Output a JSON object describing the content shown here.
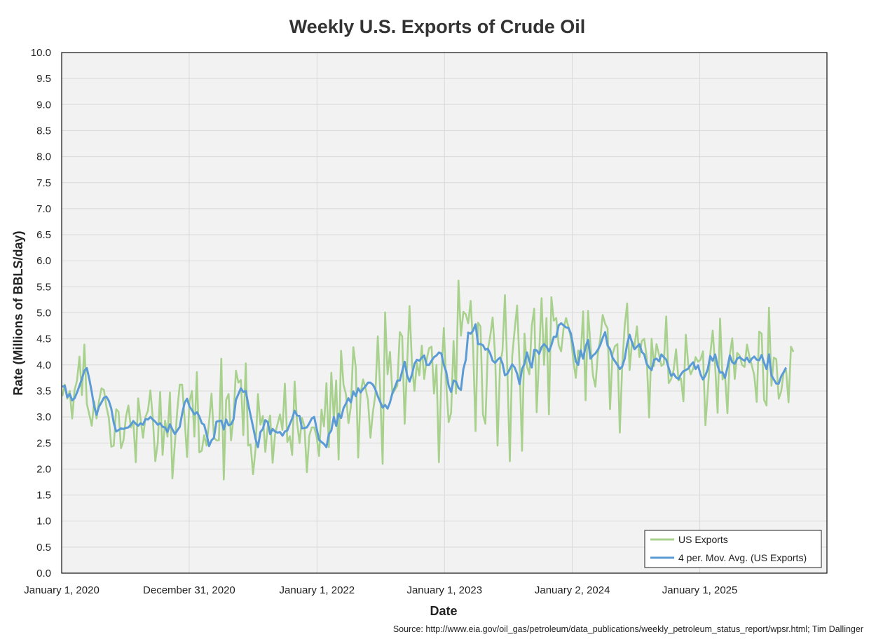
{
  "chart_data": {
    "type": "line",
    "title": "Weekly U.S. Exports of Crude Oil",
    "xlabel": "Date",
    "ylabel": "Rate (Millions of BBLS/day)",
    "ylim": [
      0,
      10
    ],
    "xlim": [
      "2020-01-01",
      "2025-12-31"
    ],
    "x_ticks": [
      "January 1, 2020",
      "December 31, 2020",
      "January 1, 2022",
      "January 1, 2023",
      "January 2, 2024",
      "January 1, 2025"
    ],
    "y_ticks": [
      "0.0",
      "0.5",
      "1.0",
      "1.5",
      "2.0",
      "2.5",
      "3.0",
      "3.5",
      "4.0",
      "4.5",
      "5.0",
      "5.5",
      "6.0",
      "6.5",
      "7.0",
      "7.5",
      "8.0",
      "8.5",
      "9.0",
      "9.5",
      "10.0"
    ],
    "grid": true,
    "legend_position": "bottom-right",
    "x_start": "2020-01-03",
    "x_interval": "weekly",
    "series": [
      {
        "name": "US Exports",
        "color": "#a9d18e",
        "values": [
          3.4,
          3.62,
          3.35,
          3.5,
          2.97,
          3.52,
          3.7,
          4.16,
          3.42,
          4.39,
          3.25,
          3.05,
          2.83,
          3.3,
          2.97,
          3.31,
          3.55,
          3.52,
          3.2,
          2.98,
          2.43,
          2.45,
          3.15,
          3.1,
          2.4,
          2.55,
          3.0,
          3.22,
          2.8,
          2.92,
          2.13,
          3.36,
          2.96,
          2.6,
          3.0,
          3.12,
          3.51,
          2.96,
          2.15,
          2.5,
          3.48,
          2.27,
          2.93,
          2.62,
          3.47,
          1.82,
          2.48,
          3.13,
          3.62,
          3.62,
          2.97,
          2.23,
          3.3,
          3.5,
          2.62,
          3.86,
          2.32,
          2.35,
          2.65,
          2.45,
          2.9,
          3.45,
          2.6,
          2.55,
          2.55,
          4.12,
          1.8,
          3.33,
          3.44,
          2.55,
          3.0,
          3.89,
          3.66,
          3.71,
          2.65,
          4.03,
          2.45,
          2.47,
          1.9,
          2.38,
          3.44,
          2.85,
          3.02,
          2.33,
          2.82,
          3.03,
          2.12,
          2.67,
          2.86,
          3.05,
          2.75,
          3.64,
          2.52,
          2.63,
          2.27,
          3.68,
          2.9,
          2.5,
          2.98,
          2.82,
          1.94,
          2.64,
          2.8,
          2.8,
          2.62,
          2.25,
          3.14,
          2.82,
          3.65,
          2.42,
          3.85,
          2.96,
          3.7,
          2.18,
          4.27,
          3.62,
          3.43,
          2.88,
          3.2,
          4.34,
          3.95,
          2.22,
          3.47,
          3.72,
          3.55,
          3.32,
          2.6,
          3.09,
          3.43,
          4.55,
          3.5,
          2.1,
          5.01,
          3.82,
          4.25,
          3.44,
          3.52,
          3.6,
          4.63,
          4.55,
          2.87,
          3.98,
          5.13,
          4.0,
          3.5,
          4.04,
          3.8,
          4.37,
          3.73,
          4.1,
          4.32,
          4.35,
          3.45,
          4.0,
          2.13,
          3.79,
          4.71,
          3.65,
          2.9,
          3.08,
          4.46,
          3.45,
          5.62,
          4.56,
          5.02,
          4.97,
          4.8,
          5.23,
          4.35,
          2.73,
          4.81,
          4.74,
          3.05,
          2.87,
          4.29,
          4.55,
          4.91,
          4.18,
          2.45,
          4.0,
          4.27,
          5.34,
          3.88,
          2.15,
          4.17,
          4.68,
          5.14,
          4.0,
          2.35,
          4.6,
          3.97,
          3.82,
          4.75,
          5.08,
          3.09,
          4.2,
          5.28,
          4.0,
          4.9,
          3.05,
          5.3,
          4.85,
          4.9,
          4.38,
          4.26,
          4.7,
          4.9,
          4.73,
          4.52,
          4.08,
          3.75,
          4.28,
          4.16,
          5.03,
          3.32,
          5.04,
          4.37,
          3.8,
          3.58,
          4.2,
          4.5,
          4.96,
          4.79,
          4.7,
          3.15,
          4.2,
          4.36,
          4.4,
          2.7,
          3.99,
          4.75,
          5.18,
          3.9,
          4.45,
          4.36,
          4.74,
          4.15,
          4.46,
          4.5,
          4.15,
          2.99,
          4.5,
          3.98,
          4.4,
          4.2,
          3.98,
          4.02,
          4.93,
          3.65,
          3.73,
          3.9,
          4.3,
          3.7,
          3.74,
          3.3,
          4.58,
          4.0,
          3.82,
          3.93,
          4.15,
          4.06,
          4.1,
          4.26,
          2.84,
          3.5,
          4.2,
          4.66,
          3.97,
          3.08,
          4.89,
          3.72,
          3.82,
          3.07,
          4.2,
          4.51,
          3.73,
          4.23,
          4.18,
          4.0,
          3.96,
          4.39,
          4.16,
          3.99,
          3.8,
          3.29,
          4.64,
          4.6,
          3.33,
          3.22,
          5.1,
          3.6,
          4.14,
          4.11,
          3.35,
          3.49,
          3.85,
          3.9,
          3.28,
          4.35,
          4.25
        ]
      },
      {
        "name": "4 per. Mov. Avg. (US Exports)",
        "color": "#5b9bd5",
        "values": [
          3.58,
          3.6,
          3.38,
          3.44,
          3.32,
          3.36,
          3.47,
          3.6,
          3.73,
          3.89,
          3.94,
          3.73,
          3.48,
          3.2,
          3.04,
          3.2,
          3.28,
          3.37,
          3.39,
          3.31,
          3.16,
          2.89,
          2.72,
          2.75,
          2.78,
          2.77,
          2.79,
          2.8,
          2.85,
          2.92,
          2.87,
          2.83,
          2.88,
          2.85,
          2.96,
          2.95,
          3.0,
          2.95,
          2.91,
          2.85,
          2.88,
          2.81,
          2.8,
          2.71,
          2.86,
          2.76,
          2.67,
          2.74,
          2.81,
          3.06,
          3.27,
          3.35,
          3.2,
          3.13,
          3.05,
          3.09,
          3.01,
          2.88,
          2.85,
          2.67,
          2.44,
          2.55,
          2.6,
          2.91,
          2.92,
          2.93,
          2.76,
          2.95,
          2.84,
          2.86,
          2.95,
          3.33,
          3.44,
          3.55,
          3.48,
          3.5,
          3.25,
          3.03,
          2.81,
          2.58,
          2.42,
          2.71,
          2.77,
          2.94,
          2.9,
          2.67,
          2.77,
          2.72,
          2.7,
          2.71,
          2.64,
          2.72,
          2.74,
          2.86,
          2.97,
          3.12,
          3.03,
          3.02,
          2.78,
          2.79,
          2.8,
          2.88,
          2.97,
          3.0,
          2.78,
          2.56,
          2.52,
          2.48,
          2.42,
          2.67,
          2.74,
          3.0,
          2.83,
          3.06,
          2.98,
          3.17,
          3.26,
          3.36,
          3.28,
          3.49,
          3.4,
          3.55,
          3.47,
          3.54,
          3.59,
          3.66,
          3.66,
          3.62,
          3.53,
          3.4,
          3.29,
          3.18,
          3.23,
          3.16,
          3.28,
          3.46,
          3.57,
          3.7,
          3.7,
          3.88,
          4.06,
          3.8,
          3.68,
          3.82,
          4.02,
          4.1,
          4.08,
          4.14,
          4.18,
          4.0,
          4.0,
          4.08,
          4.15,
          4.18,
          4.24,
          4.22,
          4.0,
          3.87,
          3.6,
          3.48,
          3.7,
          3.68,
          3.56,
          3.52,
          3.92,
          4.1,
          4.62,
          4.6,
          4.66,
          4.78,
          4.4,
          4.4,
          4.38,
          4.29,
          4.31,
          4.22,
          4.08,
          4.04,
          4.1,
          4.14,
          4.03,
          3.8,
          3.83,
          3.92,
          4.01,
          3.95,
          3.83,
          3.63,
          3.92,
          4.02,
          4.24,
          4.07,
          3.95,
          4.29,
          4.28,
          4.21,
          4.34,
          4.4,
          4.35,
          4.26,
          4.38,
          4.54,
          4.54,
          4.76,
          4.8,
          4.76,
          4.72,
          4.71,
          4.6,
          4.34,
          4.07,
          4.0,
          4.28,
          4.12,
          4.35,
          4.48,
          4.12,
          4.18,
          4.22,
          4.29,
          4.38,
          4.52,
          4.63,
          4.37,
          4.3,
          4.14,
          4.07,
          4.0,
          3.92,
          3.97,
          4.12,
          4.4,
          4.58,
          4.43,
          4.3,
          4.35,
          4.4,
          4.25,
          4.2,
          4.02,
          3.95,
          3.9,
          4.1,
          4.12,
          4.07,
          4.2,
          4.15,
          4.1,
          3.94,
          3.79,
          3.83,
          3.76,
          3.73,
          3.82,
          3.88,
          3.9,
          3.93,
          4.0,
          4.05,
          3.92,
          3.99,
          3.82,
          3.72,
          3.8,
          3.92,
          4.17,
          4.08,
          4.2,
          3.98,
          3.85,
          3.86,
          3.75,
          3.95,
          4.18,
          4.05,
          4.02,
          4.12,
          4.15,
          4.11,
          4.08,
          4.14,
          4.05,
          4.12,
          4.16,
          4.1,
          4.09,
          4.19,
          4.04,
          3.92,
          4.2,
          3.8,
          3.72,
          3.64,
          3.64,
          3.78,
          3.86,
          3.95
        ]
      }
    ]
  },
  "source_text": "Source: http://www.eia.gov/oil_gas/petroleum/data_publications/weekly_petroleum_status_report/wpsr.html; Tim Dallinger",
  "legend": {
    "item1": "US Exports",
    "item2": "4 per. Mov. Avg. (US Exports)"
  }
}
